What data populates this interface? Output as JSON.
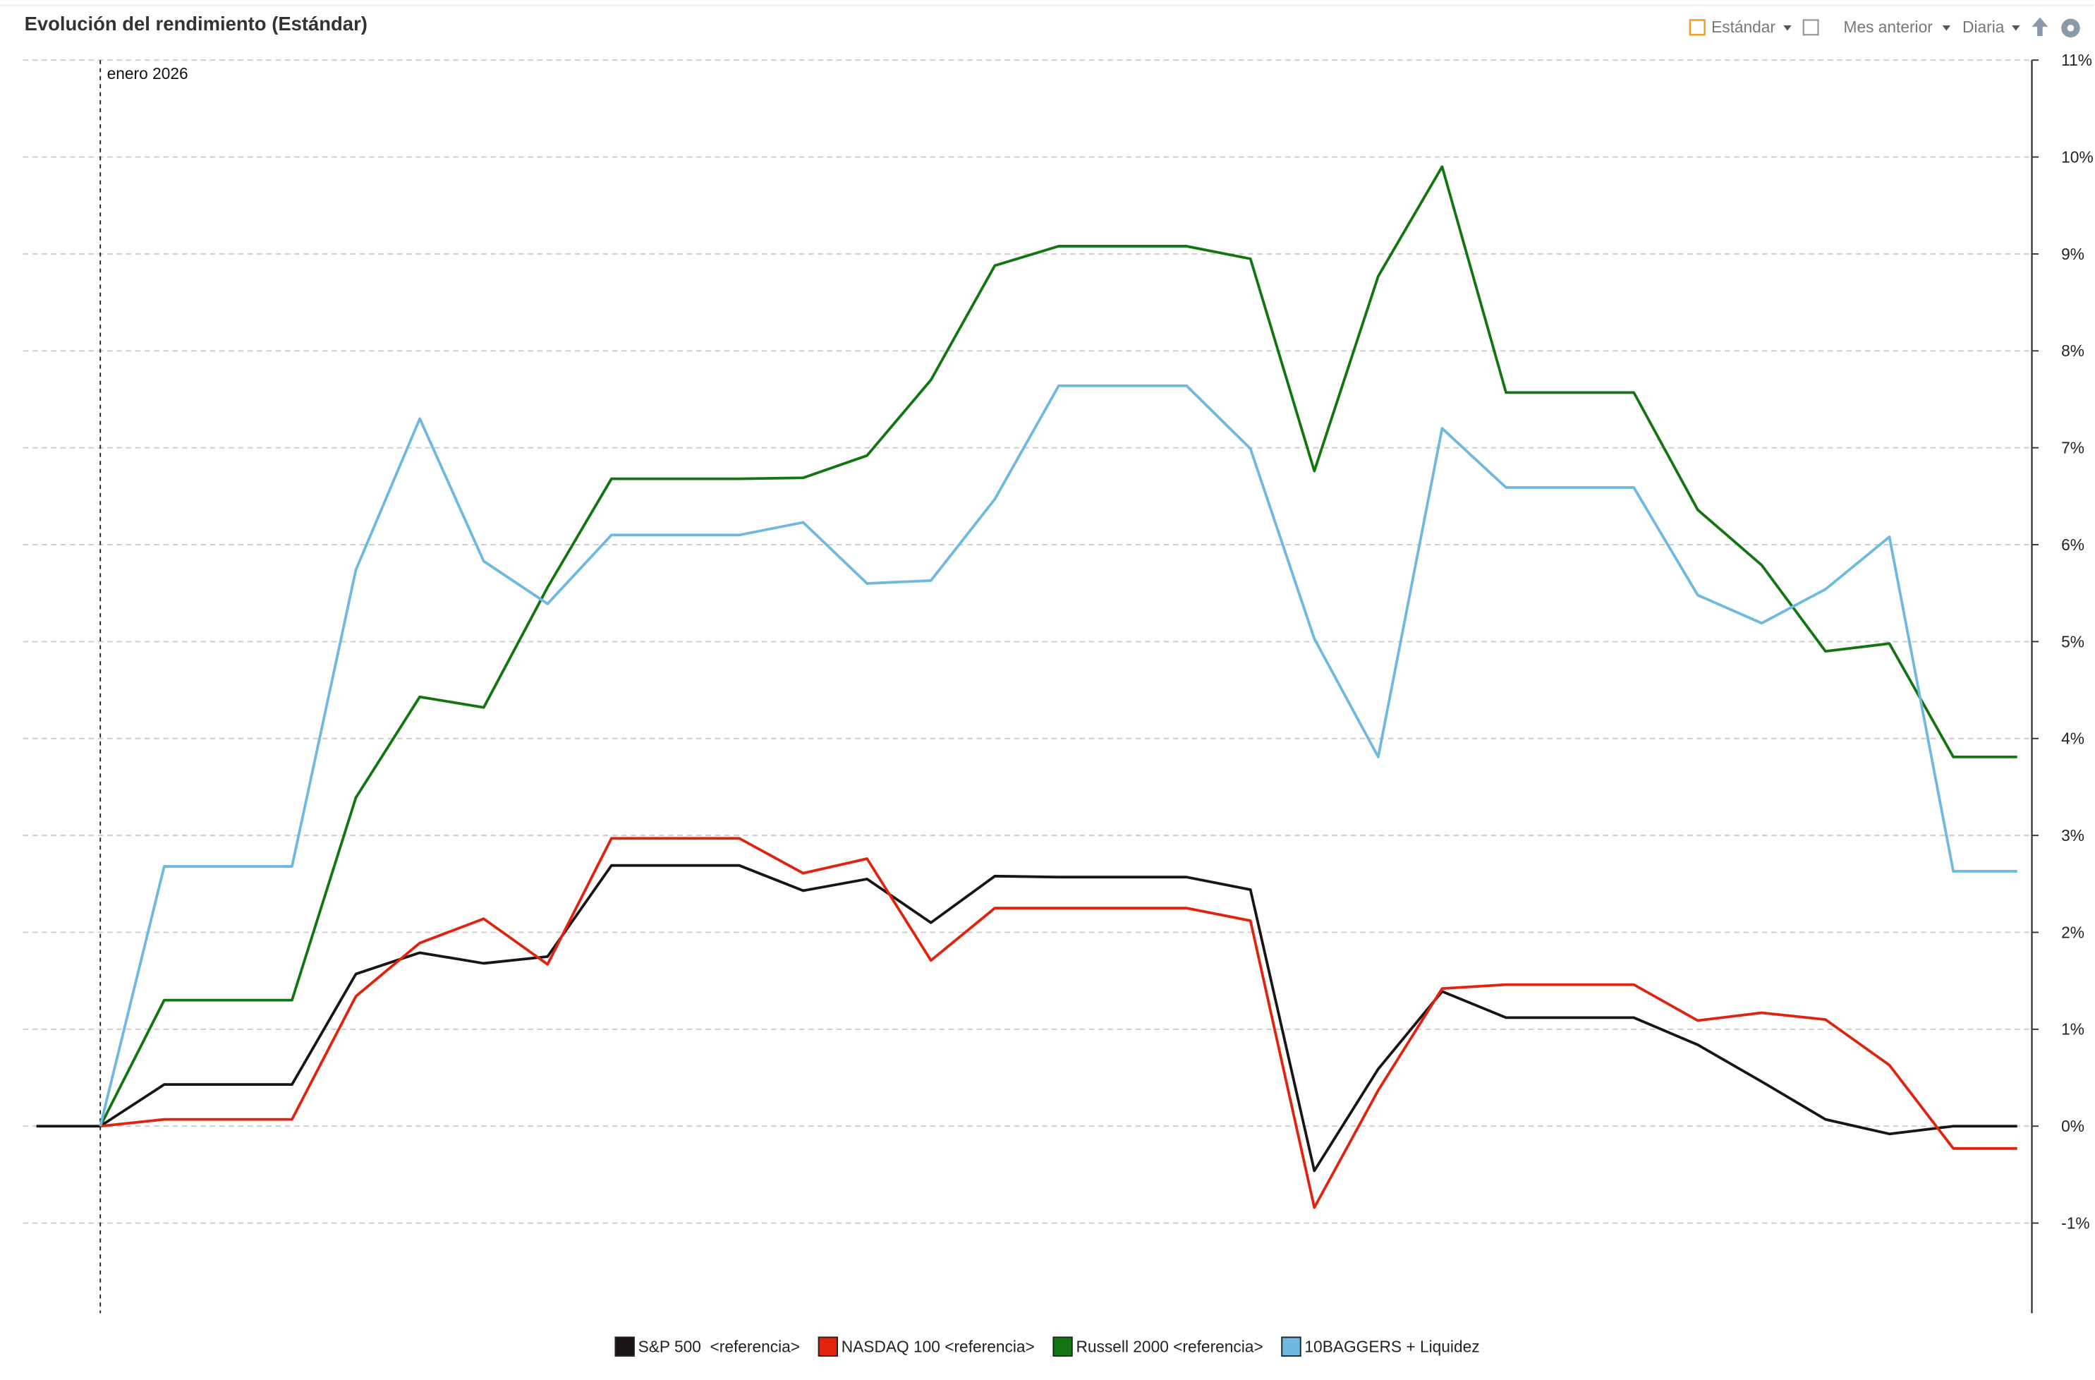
{
  "header": {
    "title": "Evolución del rendimiento (Estándar)",
    "controls": [
      "Estándar",
      "Mes anterior",
      "Diaria"
    ]
  },
  "chart_data": {
    "type": "line",
    "categories": [
      null,
      "enero 2026",
      null,
      null,
      null,
      null,
      null,
      null,
      null,
      null,
      null,
      null,
      null,
      null,
      null,
      null,
      null,
      null,
      null,
      null,
      null,
      null,
      null,
      null,
      null,
      null,
      null,
      null,
      null,
      null,
      null,
      null
    ],
    "ylim": [
      -1.93,
      11
    ],
    "yticks": [
      {
        "value": -1,
        "label": "-1%"
      },
      {
        "value": 0,
        "label": "0%"
      },
      {
        "value": 1,
        "label": "1%"
      },
      {
        "value": 2,
        "label": "2%"
      },
      {
        "value": 3,
        "label": "3%"
      },
      {
        "value": 4,
        "label": "4%"
      },
      {
        "value": 5,
        "label": "5%"
      },
      {
        "value": 6,
        "label": "6%"
      },
      {
        "value": 7,
        "label": "7%"
      },
      {
        "value": 8,
        "label": "8%"
      },
      {
        "value": 9,
        "label": "9%"
      },
      {
        "value": 10,
        "label": "10%"
      },
      {
        "value": 11,
        "label": "11%"
      }
    ],
    "grid": true,
    "series": [
      {
        "name": "S&P 500  <referencia>",
        "color": "#1a1414",
        "values": [
          0,
          0,
          0.43,
          0.43,
          0.43,
          1.57,
          1.79,
          1.68,
          1.75,
          2.69,
          2.69,
          2.69,
          2.43,
          2.55,
          2.1,
          2.58,
          2.57,
          2.57,
          2.57,
          2.44,
          -0.46,
          0.59,
          1.39,
          1.12,
          1.12,
          1.12,
          0.84,
          0.46,
          0.07,
          -0.08,
          0,
          0
        ]
      },
      {
        "name": "NASDAQ 100 <referencia>",
        "color": "#e0220e",
        "values": [
          null,
          0,
          0.07,
          0.07,
          0.07,
          1.34,
          1.89,
          2.14,
          1.67,
          2.97,
          2.97,
          2.97,
          2.61,
          2.76,
          1.71,
          2.25,
          2.25,
          2.25,
          2.25,
          2.12,
          -0.84,
          0.37,
          1.42,
          1.46,
          1.46,
          1.46,
          1.09,
          1.17,
          1.1,
          0.63,
          -0.23,
          -0.23
        ]
      },
      {
        "name": "Russell 2000 <referencia>",
        "color": "#137512",
        "values": [
          null,
          0,
          1.3,
          1.3,
          1.3,
          3.39,
          4.43,
          4.32,
          5.56,
          6.68,
          6.68,
          6.68,
          6.69,
          6.92,
          7.7,
          8.88,
          9.08,
          9.08,
          9.08,
          8.95,
          6.76,
          8.77,
          9.9,
          7.57,
          7.57,
          7.57,
          6.36,
          5.79,
          4.9,
          4.98,
          3.81,
          3.81
        ]
      },
      {
        "name": "10BAGGERS + Liquidez",
        "color": "#6fb8e0",
        "values": [
          null,
          0,
          2.68,
          2.68,
          2.68,
          5.74,
          7.3,
          5.83,
          5.39,
          6.1,
          6.1,
          6.1,
          6.23,
          5.6,
          5.63,
          6.47,
          7.64,
          7.64,
          7.64,
          6.99,
          5.03,
          3.81,
          7.2,
          6.59,
          6.59,
          6.59,
          5.48,
          5.19,
          5.54,
          6.08,
          2.63,
          2.63
        ]
      }
    ]
  }
}
